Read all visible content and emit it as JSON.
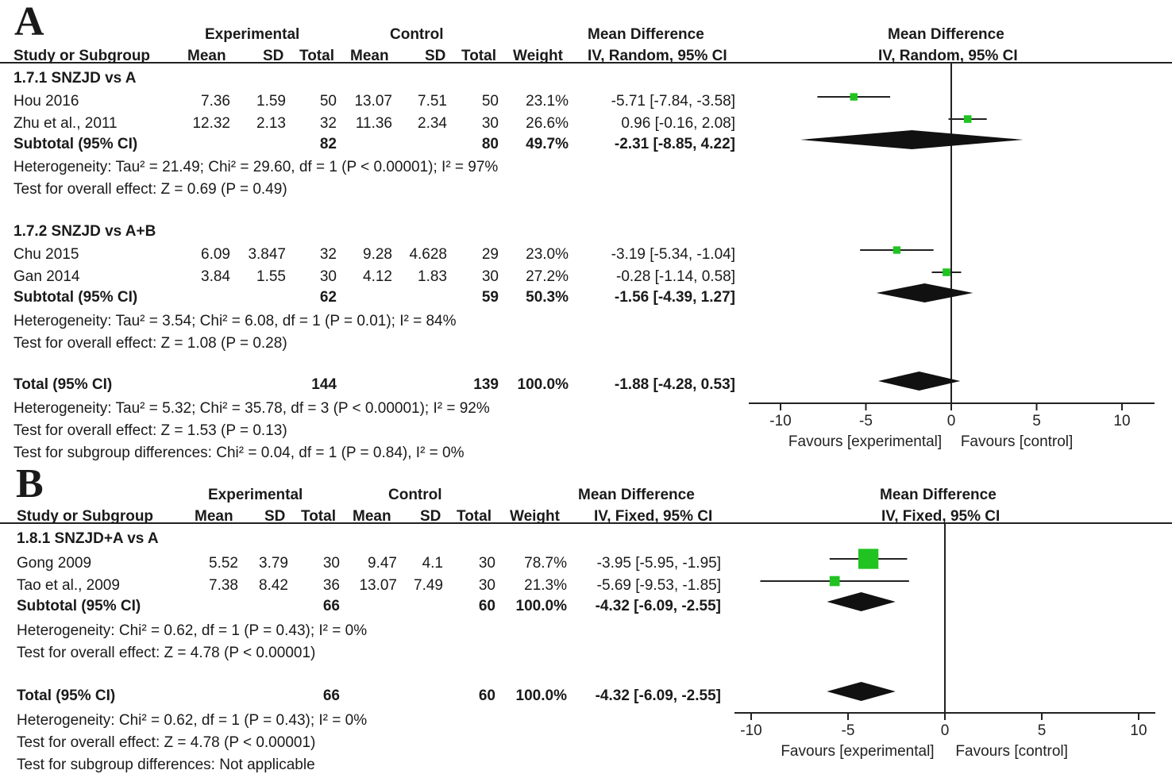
{
  "chart_data": [
    {
      "type": "forest",
      "panel_letter": "A",
      "header": {
        "group_experimental": "Experimental",
        "group_control": "Control",
        "md_group": "Mean Difference",
        "md_method": "IV, Random, 95% CI",
        "plot_title": "Mean Difference",
        "plot_method": "IV, Random, 95% CI",
        "col_study": "Study or Subgroup",
        "col_mean": "Mean",
        "col_sd": "SD",
        "col_total": "Total",
        "col_weight": "Weight"
      },
      "subgroups": [
        {
          "title": "1.7.1 SNZJD vs A",
          "studies": [
            {
              "name": "Hou 2016",
              "exp_mean": "7.36",
              "exp_sd": "1.59",
              "exp_n": "50",
              "ctl_mean": "13.07",
              "ctl_sd": "7.51",
              "ctl_n": "50",
              "weight": "23.1%",
              "ci_text": "-5.71 [-7.84, -3.58]",
              "md": -5.71,
              "lo": -7.84,
              "hi": -3.58,
              "w": 23.1
            },
            {
              "name": "Zhu et al., 2011",
              "exp_mean": "12.32",
              "exp_sd": "2.13",
              "exp_n": "32",
              "ctl_mean": "11.36",
              "ctl_sd": "2.34",
              "ctl_n": "30",
              "weight": "26.6%",
              "ci_text": "0.96 [-0.16, 2.08]",
              "md": 0.96,
              "lo": -0.16,
              "hi": 2.08,
              "w": 26.6
            }
          ],
          "subtotal": {
            "label": "Subtotal (95% CI)",
            "exp_n": "82",
            "ctl_n": "80",
            "weight": "49.7%",
            "ci_text": "-2.31 [-8.85, 4.22]",
            "md": -2.31,
            "lo": -8.85,
            "hi": 4.22
          },
          "heterogeneity": "Heterogeneity: Tau² = 21.49; Chi² = 29.60, df = 1 (P < 0.00001); I² = 97%",
          "overall": "Test for overall effect: Z = 0.69 (P = 0.49)"
        },
        {
          "title": "1.7.2 SNZJD vs A+B",
          "studies": [
            {
              "name": "Chu 2015",
              "exp_mean": "6.09",
              "exp_sd": "3.847",
              "exp_n": "32",
              "ctl_mean": "9.28",
              "ctl_sd": "4.628",
              "ctl_n": "29",
              "weight": "23.0%",
              "ci_text": "-3.19 [-5.34, -1.04]",
              "md": -3.19,
              "lo": -5.34,
              "hi": -1.04,
              "w": 23.0
            },
            {
              "name": "Gan 2014",
              "exp_mean": "3.84",
              "exp_sd": "1.55",
              "exp_n": "30",
              "ctl_mean": "4.12",
              "ctl_sd": "1.83",
              "ctl_n": "30",
              "weight": "27.2%",
              "ci_text": "-0.28 [-1.14, 0.58]",
              "md": -0.28,
              "lo": -1.14,
              "hi": 0.58,
              "w": 27.2
            }
          ],
          "subtotal": {
            "label": "Subtotal (95% CI)",
            "exp_n": "62",
            "ctl_n": "59",
            "weight": "50.3%",
            "ci_text": "-1.56 [-4.39, 1.27]",
            "md": -1.56,
            "lo": -4.39,
            "hi": 1.27
          },
          "heterogeneity": "Heterogeneity: Tau² = 3.54; Chi² = 6.08, df = 1 (P = 0.01); I² = 84%",
          "overall": "Test for overall effect: Z = 1.08 (P = 0.28)"
        }
      ],
      "total": {
        "label": "Total (95% CI)",
        "exp_n": "144",
        "ctl_n": "139",
        "weight": "100.0%",
        "ci_text": "-1.88 [-4.28, 0.53]",
        "md": -1.88,
        "lo": -4.28,
        "hi": 0.53
      },
      "footer": [
        "Heterogeneity: Tau² = 5.32; Chi² = 35.78, df = 3 (P < 0.00001); I² = 92%",
        "Test for overall effect: Z = 1.53 (P = 0.13)",
        "Test for subgroup differences: Chi² = 0.04, df = 1 (P = 0.84), I² = 0%"
      ],
      "xlim": [
        -10,
        10
      ],
      "ticks": [
        "-10",
        "-5",
        "0",
        "5",
        "10"
      ],
      "favours_left": "Favours [experimental]",
      "favours_right": "Favours [control]",
      "marker_color": "#21c321"
    },
    {
      "type": "forest",
      "panel_letter": "B",
      "header": {
        "group_experimental": "Experimental",
        "group_control": "Control",
        "md_group": "Mean Difference",
        "md_method": "IV, Fixed, 95% CI",
        "plot_title": "Mean Difference",
        "plot_method": "IV, Fixed, 95% CI",
        "col_study": "Study or Subgroup",
        "col_mean": "Mean",
        "col_sd": "SD",
        "col_total": "Total",
        "col_weight": "Weight"
      },
      "subgroups": [
        {
          "title": "1.8.1 SNZJD+A vs A",
          "studies": [
            {
              "name": "Gong 2009",
              "exp_mean": "5.52",
              "exp_sd": "3.79",
              "exp_n": "30",
              "ctl_mean": "9.47",
              "ctl_sd": "4.1",
              "ctl_n": "30",
              "weight": "78.7%",
              "ci_text": "-3.95 [-5.95, -1.95]",
              "md": -3.95,
              "lo": -5.95,
              "hi": -1.95,
              "w": 78.7
            },
            {
              "name": "Tao et al., 2009",
              "exp_mean": "7.38",
              "exp_sd": "8.42",
              "exp_n": "36",
              "ctl_mean": "13.07",
              "ctl_sd": "7.49",
              "ctl_n": "30",
              "weight": "21.3%",
              "ci_text": "-5.69 [-9.53, -1.85]",
              "md": -5.69,
              "lo": -9.53,
              "hi": -1.85,
              "w": 21.3
            }
          ],
          "subtotal": {
            "label": "Subtotal (95% CI)",
            "exp_n": "66",
            "ctl_n": "60",
            "weight": "100.0%",
            "ci_text": "-4.32 [-6.09, -2.55]",
            "md": -4.32,
            "lo": -6.09,
            "hi": -2.55
          },
          "heterogeneity": "Heterogeneity: Chi² = 0.62, df = 1 (P = 0.43); I² = 0%",
          "overall": "Test for overall effect: Z = 4.78 (P < 0.00001)"
        }
      ],
      "total": {
        "label": "Total (95% CI)",
        "exp_n": "66",
        "ctl_n": "60",
        "weight": "100.0%",
        "ci_text": "-4.32 [-6.09, -2.55]",
        "md": -4.32,
        "lo": -6.09,
        "hi": -2.55
      },
      "footer": [
        "Heterogeneity: Chi² = 0.62, df = 1 (P = 0.43); I² = 0%",
        "Test for overall effect: Z = 4.78 (P < 0.00001)",
        "Test for subgroup differences: Not applicable"
      ],
      "xlim": [
        -10,
        10
      ],
      "ticks": [
        "-10",
        "-5",
        "0",
        "5",
        "10"
      ],
      "favours_left": "Favours [experimental]",
      "favours_right": "Favours [control]",
      "marker_color": "#21c321"
    }
  ]
}
